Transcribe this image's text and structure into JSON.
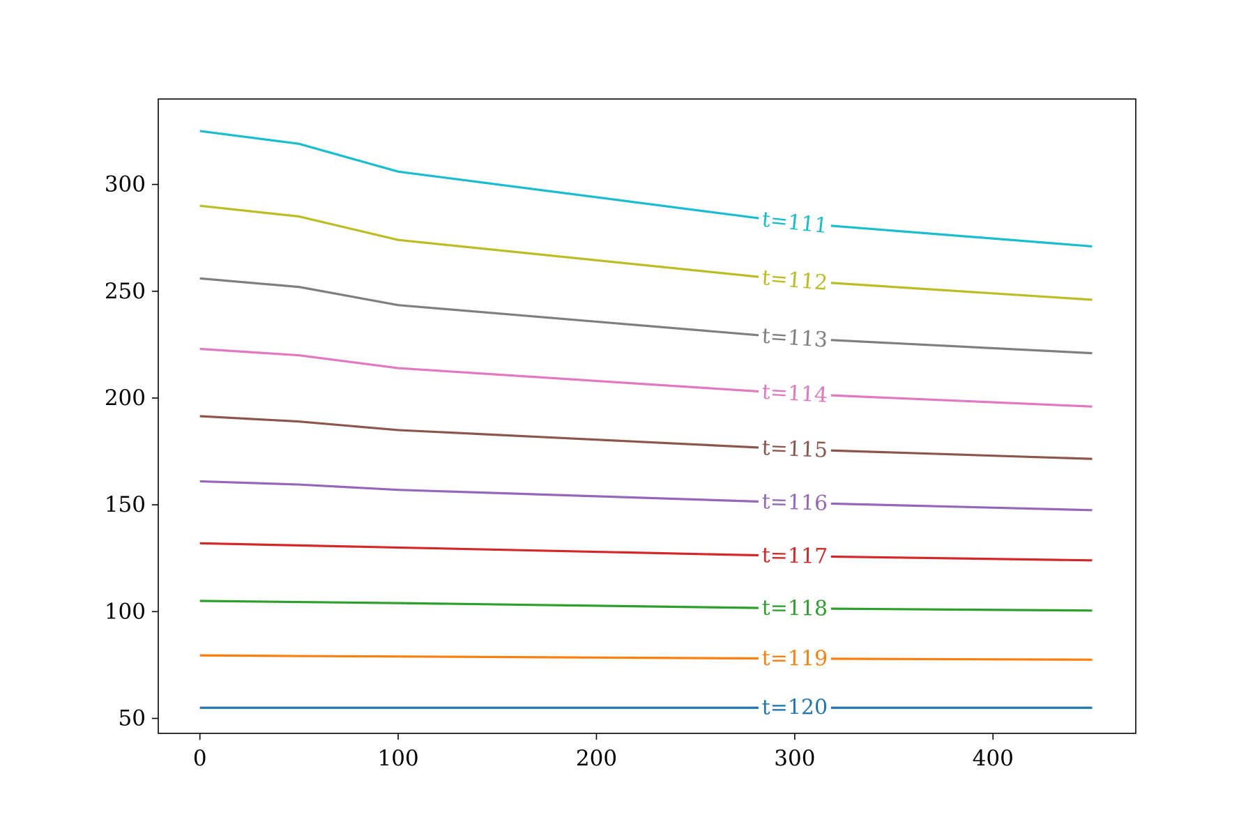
{
  "chart_data": {
    "type": "line",
    "title": "",
    "xlabel": "",
    "ylabel": "",
    "xlim": [
      -21,
      472
    ],
    "ylim": [
      43,
      340
    ],
    "xticks": [
      0,
      100,
      200,
      300,
      400
    ],
    "yticks": [
      50,
      100,
      150,
      200,
      250,
      300
    ],
    "xtick_labels": [
      "0",
      "100",
      "200",
      "300",
      "400"
    ],
    "ytick_labels": [
      "50",
      "100",
      "150",
      "200",
      "250",
      "300"
    ],
    "grid": false,
    "legend": "none",
    "inline_label_x": 300,
    "series": [
      {
        "name": "t=111",
        "color": "#17becf",
        "x": [
          0,
          50,
          100,
          300,
          450
        ],
        "y": [
          325,
          319,
          306,
          282,
          271
        ]
      },
      {
        "name": "t=112",
        "color": "#bcbd22",
        "x": [
          0,
          50,
          100,
          300,
          450
        ],
        "y": [
          290,
          285,
          274,
          255,
          246
        ]
      },
      {
        "name": "t=113",
        "color": "#7f7f7f",
        "x": [
          0,
          50,
          100,
          300,
          450
        ],
        "y": [
          256,
          252,
          243.5,
          228,
          221
        ]
      },
      {
        "name": "t=114",
        "color": "#e377c2",
        "x": [
          0,
          50,
          100,
          300,
          450
        ],
        "y": [
          223,
          220,
          214,
          202,
          196
        ]
      },
      {
        "name": "t=115",
        "color": "#8c564b",
        "x": [
          0,
          50,
          100,
          300,
          450
        ],
        "y": [
          191.5,
          189,
          185,
          176,
          171.5
        ]
      },
      {
        "name": "t=116",
        "color": "#9467bd",
        "x": [
          0,
          50,
          100,
          300,
          450
        ],
        "y": [
          161,
          159.5,
          157,
          151,
          147.5
        ]
      },
      {
        "name": "t=117",
        "color": "#d62728",
        "x": [
          0,
          50,
          100,
          300,
          450
        ],
        "y": [
          132,
          131,
          130,
          126,
          124
        ]
      },
      {
        "name": "t=118",
        "color": "#2ca02c",
        "x": [
          0,
          50,
          100,
          300,
          450
        ],
        "y": [
          105,
          104.5,
          104,
          101.5,
          100.5
        ]
      },
      {
        "name": "t=119",
        "color": "#ff7f0e",
        "x": [
          0,
          50,
          100,
          300,
          450
        ],
        "y": [
          79.5,
          79.2,
          79,
          78,
          77.5
        ]
      },
      {
        "name": "t=120",
        "color": "#1f77b4",
        "x": [
          0,
          50,
          100,
          300,
          450
        ],
        "y": [
          55,
          55,
          55,
          55,
          55
        ]
      }
    ]
  }
}
